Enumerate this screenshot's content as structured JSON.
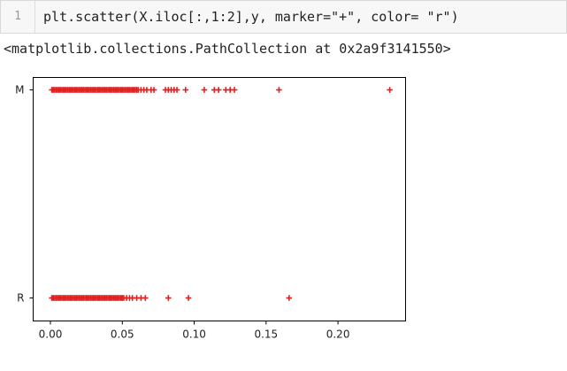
{
  "input_cell": {
    "line_number": "1",
    "code": "plt.scatter(X.iloc[:,1:2],y, marker=\"+\", color= \"r\")"
  },
  "output": {
    "repr": "<matplotlib.collections.PathCollection at 0x2a9f3141550>"
  },
  "chart_data": {
    "type": "scatter",
    "title": "",
    "xlabel": "",
    "ylabel": "",
    "xlim": [
      -0.012,
      0.247
    ],
    "x_ticks": [
      0.0,
      0.05,
      0.1,
      0.15,
      0.2
    ],
    "x_tick_labels": [
      "0.00",
      "0.05",
      "0.10",
      "0.15",
      "0.20"
    ],
    "y_categories": [
      "R",
      "M"
    ],
    "marker": "+",
    "color": "#e02020",
    "grid": false,
    "series": [
      {
        "category": "M",
        "x": [
          0.001,
          0.002,
          0.003,
          0.004,
          0.005,
          0.006,
          0.007,
          0.008,
          0.009,
          0.01,
          0.011,
          0.012,
          0.013,
          0.014,
          0.015,
          0.016,
          0.017,
          0.018,
          0.019,
          0.02,
          0.021,
          0.022,
          0.023,
          0.024,
          0.025,
          0.026,
          0.027,
          0.028,
          0.029,
          0.03,
          0.031,
          0.032,
          0.033,
          0.034,
          0.035,
          0.036,
          0.037,
          0.038,
          0.039,
          0.04,
          0.041,
          0.042,
          0.043,
          0.044,
          0.045,
          0.046,
          0.047,
          0.048,
          0.049,
          0.05,
          0.051,
          0.052,
          0.053,
          0.054,
          0.055,
          0.056,
          0.057,
          0.058,
          0.059,
          0.06,
          0.061,
          0.063,
          0.065,
          0.067,
          0.07,
          0.072,
          0.08,
          0.082,
          0.084,
          0.086,
          0.088,
          0.094,
          0.107,
          0.114,
          0.117,
          0.122,
          0.125,
          0.128,
          0.159,
          0.236
        ]
      },
      {
        "category": "R",
        "x": [
          0.001,
          0.002,
          0.003,
          0.004,
          0.005,
          0.006,
          0.007,
          0.008,
          0.009,
          0.01,
          0.011,
          0.012,
          0.013,
          0.014,
          0.015,
          0.016,
          0.017,
          0.018,
          0.019,
          0.02,
          0.021,
          0.022,
          0.023,
          0.024,
          0.025,
          0.026,
          0.027,
          0.028,
          0.029,
          0.03,
          0.031,
          0.032,
          0.033,
          0.034,
          0.035,
          0.036,
          0.037,
          0.038,
          0.039,
          0.04,
          0.041,
          0.042,
          0.043,
          0.044,
          0.045,
          0.046,
          0.047,
          0.048,
          0.049,
          0.05,
          0.051,
          0.053,
          0.055,
          0.057,
          0.06,
          0.063,
          0.066,
          0.082,
          0.096,
          0.166
        ]
      }
    ]
  }
}
